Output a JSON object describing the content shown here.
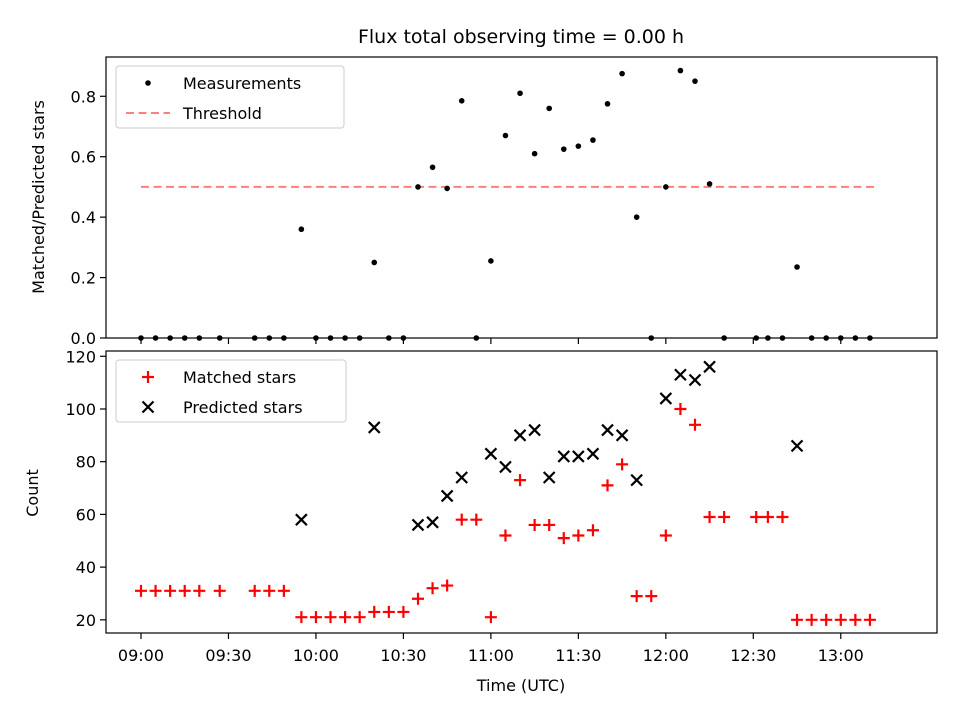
{
  "colors": {
    "measurement": "#000000",
    "threshold": "#ff7f7f",
    "matched": "#ff0000",
    "predicted": "#000000"
  },
  "chart_data": [
    {
      "type": "scatter",
      "title": "Flux total observing time = 0.00 h",
      "xlabel": "",
      "ylabel": "Matched/Predicted stars",
      "ylim": [
        0,
        0.93
      ],
      "yticks": [
        0.0,
        0.2,
        0.4,
        0.6,
        0.8
      ],
      "ytick_labels": [
        "0.0",
        "0.2",
        "0.4",
        "0.6",
        "0.8"
      ],
      "legend": {
        "placement": "upper-left",
        "entries": [
          "Measurements",
          "Threshold"
        ]
      },
      "threshold": {
        "name": "Threshold",
        "value": 0.5,
        "x_range": [
          "09:00",
          "13:12"
        ],
        "style": "dashed"
      },
      "series": [
        {
          "name": "Measurements",
          "marker": "dot",
          "points": [
            [
              "09:00",
              0.0
            ],
            [
              "09:05",
              0.0
            ],
            [
              "09:10",
              0.0
            ],
            [
              "09:15",
              0.0
            ],
            [
              "09:20",
              0.0
            ],
            [
              "09:27",
              0.0
            ],
            [
              "09:39",
              0.0
            ],
            [
              "09:44",
              0.0
            ],
            [
              "09:49",
              0.0
            ],
            [
              "09:55",
              0.36
            ],
            [
              "10:00",
              0.0
            ],
            [
              "10:05",
              0.0
            ],
            [
              "10:10",
              0.0
            ],
            [
              "10:15",
              0.0
            ],
            [
              "10:20",
              0.25
            ],
            [
              "10:25",
              0.0
            ],
            [
              "10:30",
              0.0
            ],
            [
              "10:35",
              0.5
            ],
            [
              "10:40",
              0.565
            ],
            [
              "10:45",
              0.495
            ],
            [
              "10:50",
              0.785
            ],
            [
              "10:55",
              0.0
            ],
            [
              "11:00",
              0.255
            ],
            [
              "11:05",
              0.67
            ],
            [
              "11:10",
              0.81
            ],
            [
              "11:15",
              0.61
            ],
            [
              "11:20",
              0.76
            ],
            [
              "11:25",
              0.625
            ],
            [
              "11:30",
              0.635
            ],
            [
              "11:35",
              0.655
            ],
            [
              "11:40",
              0.775
            ],
            [
              "11:45",
              0.875
            ],
            [
              "11:50",
              0.4
            ],
            [
              "11:55",
              0.0
            ],
            [
              "12:00",
              0.5
            ],
            [
              "12:05",
              0.885
            ],
            [
              "12:10",
              0.85
            ],
            [
              "12:15",
              0.51
            ],
            [
              "12:20",
              0.0
            ],
            [
              "12:31",
              0.0
            ],
            [
              "12:35",
              0.0
            ],
            [
              "12:40",
              0.0
            ],
            [
              "12:45",
              0.235
            ],
            [
              "12:50",
              0.0
            ],
            [
              "12:55",
              0.0
            ],
            [
              "13:00",
              0.0
            ],
            [
              "13:05",
              0.0
            ],
            [
              "13:10",
              0.0
            ]
          ]
        }
      ]
    },
    {
      "type": "scatter",
      "title": "",
      "xlabel": "Time (UTC)",
      "ylabel": "Count",
      "ylim": [
        15,
        122
      ],
      "yticks": [
        20,
        40,
        60,
        80,
        100,
        120
      ],
      "ytick_labels": [
        "20",
        "40",
        "60",
        "80",
        "100",
        "120"
      ],
      "xticks": [
        "09:00",
        "09:30",
        "10:00",
        "10:30",
        "11:00",
        "11:30",
        "12:00",
        "12:30",
        "13:00"
      ],
      "xlim": [
        "08:48",
        "13:33"
      ],
      "legend": {
        "placement": "upper-left",
        "entries": [
          "Matched stars",
          "Predicted stars"
        ]
      },
      "series": [
        {
          "name": "Matched stars",
          "marker": "plus",
          "points": [
            [
              "09:00",
              31
            ],
            [
              "09:05",
              31
            ],
            [
              "09:10",
              31
            ],
            [
              "09:15",
              31
            ],
            [
              "09:20",
              31
            ],
            [
              "09:27",
              31
            ],
            [
              "09:39",
              31
            ],
            [
              "09:44",
              31
            ],
            [
              "09:49",
              31
            ],
            [
              "09:55",
              21
            ],
            [
              "10:00",
              21
            ],
            [
              "10:05",
              21
            ],
            [
              "10:10",
              21
            ],
            [
              "10:15",
              21
            ],
            [
              "10:20",
              23
            ],
            [
              "10:25",
              23
            ],
            [
              "10:30",
              23
            ],
            [
              "10:35",
              28
            ],
            [
              "10:40",
              32
            ],
            [
              "10:45",
              33
            ],
            [
              "10:50",
              58
            ],
            [
              "10:55",
              58
            ],
            [
              "11:00",
              21
            ],
            [
              "11:05",
              52
            ],
            [
              "11:10",
              73
            ],
            [
              "11:15",
              56
            ],
            [
              "11:20",
              56
            ],
            [
              "11:25",
              51
            ],
            [
              "11:30",
              52
            ],
            [
              "11:35",
              54
            ],
            [
              "11:40",
              71
            ],
            [
              "11:45",
              79
            ],
            [
              "11:50",
              29
            ],
            [
              "11:55",
              29
            ],
            [
              "12:00",
              52
            ],
            [
              "12:05",
              100
            ],
            [
              "12:10",
              94
            ],
            [
              "12:15",
              59
            ],
            [
              "12:20",
              59
            ],
            [
              "12:31",
              59
            ],
            [
              "12:35",
              59
            ],
            [
              "12:40",
              59
            ],
            [
              "12:45",
              20
            ],
            [
              "12:50",
              20
            ],
            [
              "12:55",
              20
            ],
            [
              "13:00",
              20
            ],
            [
              "13:05",
              20
            ],
            [
              "13:10",
              20
            ]
          ]
        },
        {
          "name": "Predicted stars",
          "marker": "x",
          "points": [
            [
              "09:55",
              58
            ],
            [
              "10:20",
              93
            ],
            [
              "10:35",
              56
            ],
            [
              "10:40",
              57
            ],
            [
              "10:45",
              67
            ],
            [
              "10:50",
              74
            ],
            [
              "11:00",
              83
            ],
            [
              "11:05",
              78
            ],
            [
              "11:10",
              90
            ],
            [
              "11:15",
              92
            ],
            [
              "11:20",
              74
            ],
            [
              "11:25",
              82
            ],
            [
              "11:30",
              82
            ],
            [
              "11:35",
              83
            ],
            [
              "11:40",
              92
            ],
            [
              "11:45",
              90
            ],
            [
              "11:50",
              73
            ],
            [
              "12:00",
              104
            ],
            [
              "12:05",
              113
            ],
            [
              "12:10",
              111
            ],
            [
              "12:15",
              116
            ],
            [
              "12:45",
              86
            ]
          ]
        }
      ]
    }
  ]
}
